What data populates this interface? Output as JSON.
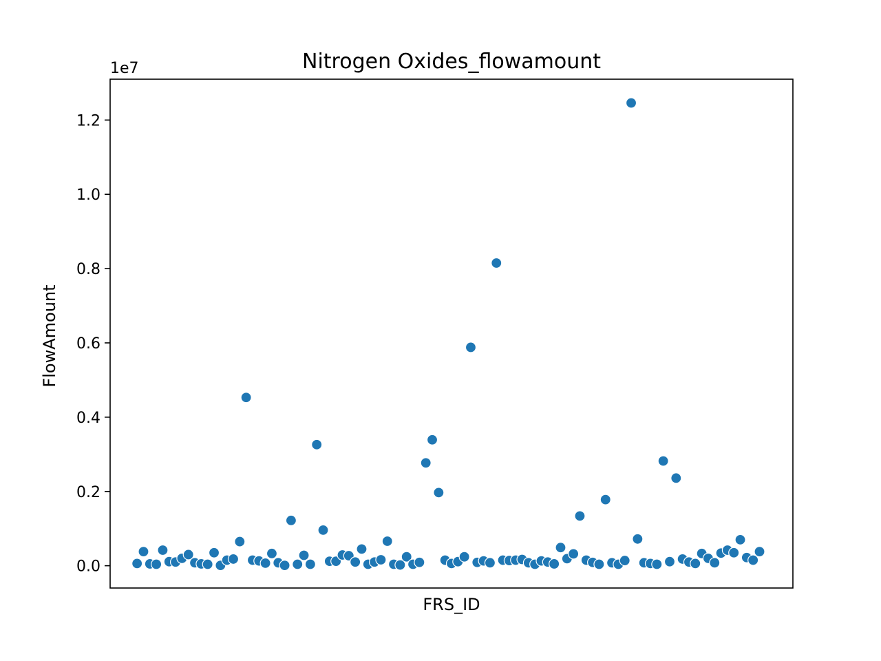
{
  "chart_data": {
    "type": "scatter",
    "title": "Nitrogen Oxides_flowamount",
    "xlabel": "FRS_ID",
    "ylabel": "FlowAmount",
    "y_offset_label": "1e7",
    "ylim": [
      -600000,
      13100000
    ],
    "xlim": [
      -4.2,
      102.2
    ],
    "y_ticks": [
      0,
      2000000,
      4000000,
      6000000,
      8000000,
      10000000,
      12000000
    ],
    "y_tick_labels": [
      "0.0",
      "0.2",
      "0.4",
      "0.6",
      "0.8",
      "1.0",
      "1.2"
    ],
    "grid": false,
    "marker_color": "#1f77b4",
    "series": [
      {
        "values": [
          60000,
          380000,
          50000,
          40000,
          420000,
          110000,
          100000,
          200000,
          300000,
          80000,
          50000,
          40000,
          350000,
          10000,
          150000,
          180000,
          650000,
          4530000,
          150000,
          130000,
          70000,
          330000,
          80000,
          10000,
          1220000,
          40000,
          280000,
          40000,
          3260000,
          960000,
          120000,
          120000,
          290000,
          270000,
          100000,
          450000,
          40000,
          100000,
          160000,
          660000,
          40000,
          20000,
          240000,
          40000,
          90000,
          2770000,
          3390000,
          1970000,
          150000,
          60000,
          110000,
          240000,
          5880000,
          90000,
          130000,
          80000,
          8150000,
          150000,
          140000,
          150000,
          170000,
          80000,
          40000,
          130000,
          100000,
          50000,
          490000,
          190000,
          320000,
          1340000,
          150000,
          90000,
          40000,
          1780000,
          80000,
          40000,
          140000,
          12460000,
          720000,
          80000,
          60000,
          40000,
          2820000,
          110000,
          2360000,
          180000,
          100000,
          60000,
          330000,
          200000,
          80000,
          340000,
          420000,
          350000,
          700000,
          220000,
          150000,
          380000
        ]
      }
    ]
  }
}
